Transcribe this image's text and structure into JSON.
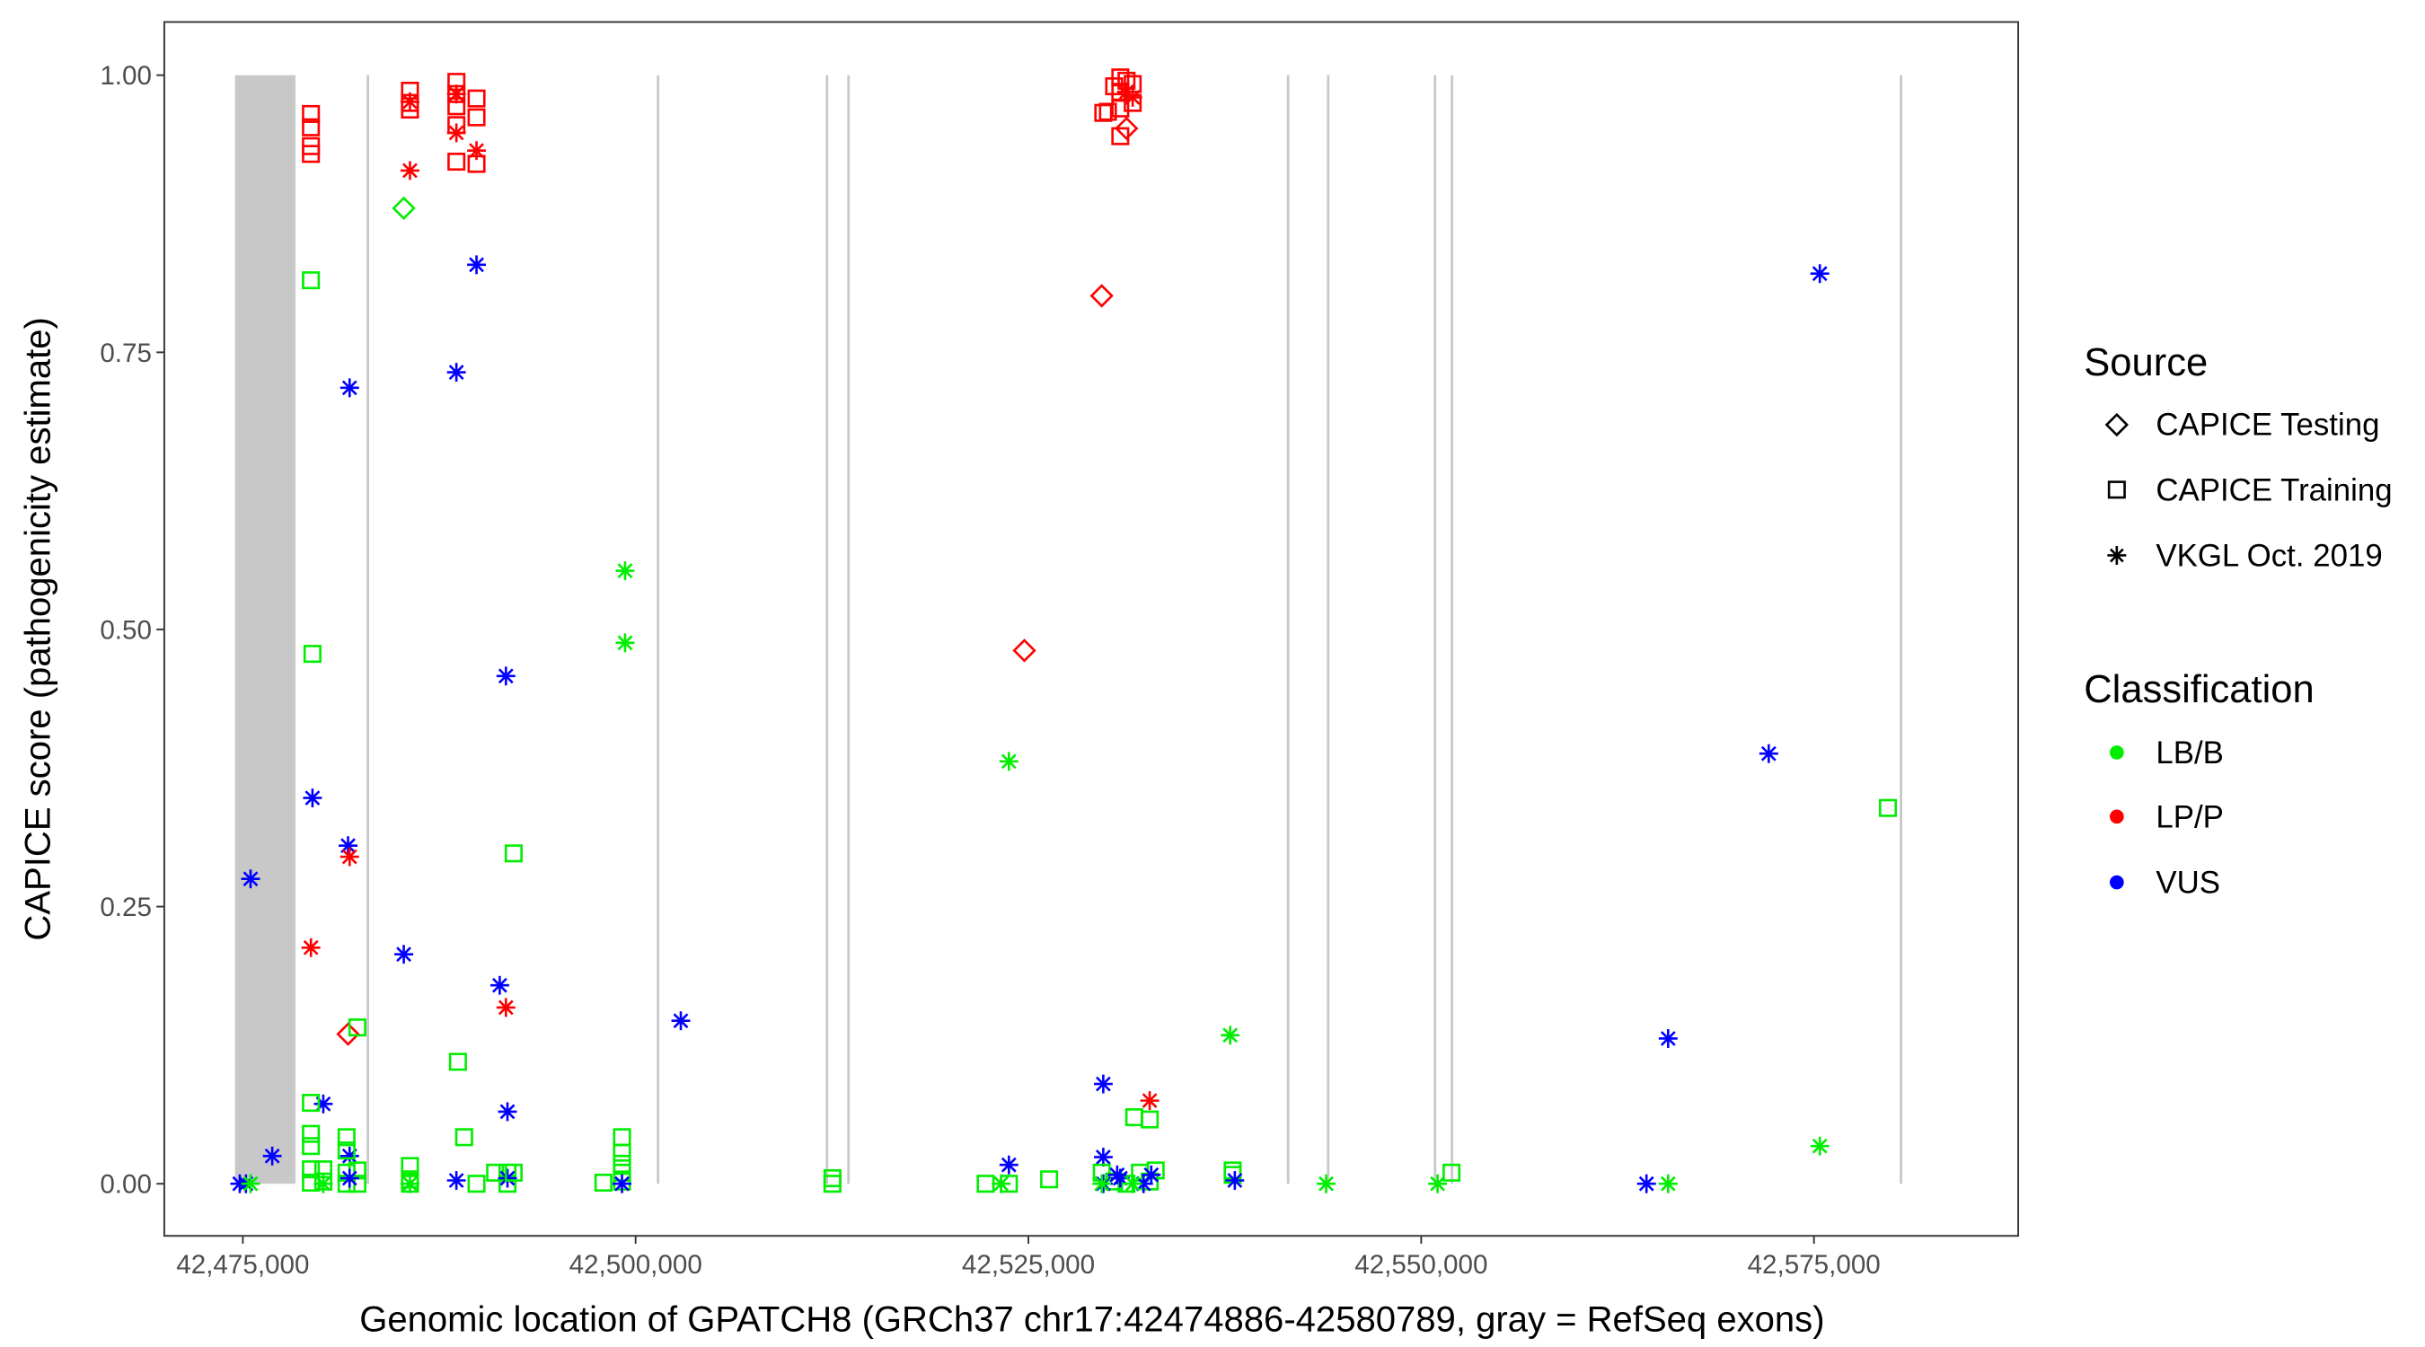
{
  "chart_data": {
    "type": "scatter",
    "xlabel": "Genomic location of GPATCH8 (GRCh37 chr17:42474886-42580789, gray = RefSeq exons)",
    "ylabel": "CAPICE score (pathogenicity estimate)",
    "xlim": [
      42470000,
      42588000
    ],
    "ylim": [
      -0.047,
      1.048
    ],
    "x_ticks": [
      42475000,
      42500000,
      42525000,
      42550000,
      42575000
    ],
    "x_tick_labels": [
      "42,475,000",
      "42,500,000",
      "42,525,000",
      "42,550,000",
      "42,575,000"
    ],
    "y_ticks": [
      0,
      0.25,
      0.5,
      0.75,
      1.0
    ],
    "y_tick_labels": [
      "0.00",
      "0.25",
      "0.50",
      "0.75",
      "1.00"
    ],
    "grid": false,
    "exons": [
      [
        42474500,
        42478350
      ],
      [
        42482880,
        42483000
      ],
      [
        42501350,
        42501470
      ],
      [
        42512100,
        42512220
      ],
      [
        42513470,
        42513590
      ],
      [
        42541450,
        42541570
      ],
      [
        42544000,
        42544120
      ],
      [
        42550800,
        42550920
      ],
      [
        42551880,
        42552000
      ],
      [
        42580460,
        42580580
      ]
    ],
    "exon_color": "#c8c8c8",
    "legend": {
      "position": "right",
      "source_title": "Source",
      "sources": [
        "CAPICE Testing",
        "CAPICE Training",
        "VKGL Oct. 2019"
      ],
      "source_shapes": [
        "diamond",
        "square",
        "asterisk"
      ],
      "class_title": "Classification",
      "classes": [
        "LB/B",
        "LP/P",
        "VUS"
      ],
      "class_colors": [
        "#00ee00",
        "#ff0000",
        "#0000ff"
      ]
    },
    "point_fields": [
      "position",
      "score",
      "source_index",
      "class_index"
    ],
    "points": [
      [
        42479334,
        0.965,
        1,
        1
      ],
      [
        42479334,
        0.953,
        1,
        1
      ],
      [
        42479334,
        0.936,
        1,
        1
      ],
      [
        42479334,
        0.929,
        1,
        1
      ],
      [
        42485638,
        0.986,
        1,
        1
      ],
      [
        42485638,
        0.975,
        1,
        1
      ],
      [
        42485638,
        0.969,
        1,
        1
      ],
      [
        42485638,
        0.976,
        2,
        1
      ],
      [
        42485638,
        0.914,
        2,
        1
      ],
      [
        42485244,
        0.88,
        0,
        0
      ],
      [
        42488593,
        0.994,
        1,
        1
      ],
      [
        42488593,
        0.983,
        1,
        1
      ],
      [
        42488593,
        0.972,
        1,
        1
      ],
      [
        42488593,
        0.955,
        1,
        1
      ],
      [
        42488593,
        0.922,
        1,
        1
      ],
      [
        42489874,
        0.979,
        1,
        1
      ],
      [
        42489874,
        0.962,
        1,
        1
      ],
      [
        42489874,
        0.92,
        1,
        1
      ],
      [
        42488593,
        0.983,
        2,
        1
      ],
      [
        42488593,
        0.948,
        2,
        1
      ],
      [
        42489874,
        0.932,
        2,
        1
      ],
      [
        42489874,
        0.829,
        2,
        2
      ],
      [
        42488593,
        0.732,
        2,
        2
      ],
      [
        42481797,
        0.718,
        2,
        2
      ],
      [
        42479334,
        0.815,
        1,
        0
      ],
      [
        42479433,
        0.478,
        1,
        0
      ],
      [
        42499330,
        0.553,
        2,
        0
      ],
      [
        42499330,
        0.488,
        2,
        0
      ],
      [
        42491745,
        0.458,
        2,
        2
      ],
      [
        42479433,
        0.348,
        2,
        2
      ],
      [
        42481698,
        0.305,
        2,
        2
      ],
      [
        42481797,
        0.295,
        2,
        1
      ],
      [
        42492238,
        0.298,
        1,
        0
      ],
      [
        42479334,
        0.213,
        2,
        1
      ],
      [
        42485244,
        0.207,
        2,
        2
      ],
      [
        42475493,
        0.275,
        2,
        2
      ],
      [
        42491351,
        0.179,
        2,
        2
      ],
      [
        42491745,
        0.159,
        2,
        1
      ],
      [
        42502876,
        0.147,
        2,
        2
      ],
      [
        42481698,
        0.135,
        0,
        1
      ],
      [
        42482289,
        0.141,
        1,
        0
      ],
      [
        42488692,
        0.11,
        1,
        0
      ],
      [
        42480122,
        0.072,
        2,
        2
      ],
      [
        42479334,
        0.073,
        1,
        0
      ],
      [
        42491844,
        0.065,
        2,
        2
      ],
      [
        42489086,
        0.042,
        1,
        0
      ],
      [
        42481600,
        0.042,
        1,
        0
      ],
      [
        42499133,
        0.042,
        1,
        0
      ],
      [
        42476872,
        0.025,
        2,
        2
      ],
      [
        42481797,
        0.025,
        2,
        2
      ],
      [
        42479334,
        0.045,
        1,
        0
      ],
      [
        42479334,
        0.034,
        1,
        0
      ],
      [
        42479334,
        0.013,
        1,
        0
      ],
      [
        42479334,
        0.001,
        1,
        0
      ],
      [
        42480122,
        0.013,
        1,
        0
      ],
      [
        42480122,
        0.002,
        1,
        0
      ],
      [
        42480122,
        0.0,
        2,
        0
      ],
      [
        42481600,
        0.03,
        1,
        0
      ],
      [
        42481600,
        0.01,
        1,
        0
      ],
      [
        42481600,
        0.0,
        1,
        0
      ],
      [
        42482289,
        0.012,
        1,
        0
      ],
      [
        42482289,
        0.0,
        1,
        0
      ],
      [
        42481797,
        0.005,
        2,
        2
      ],
      [
        42485638,
        0.016,
        1,
        0
      ],
      [
        42485638,
        0.004,
        1,
        0
      ],
      [
        42485638,
        0.0,
        1,
        0
      ],
      [
        42485638,
        0.0,
        2,
        0
      ],
      [
        42488593,
        0.003,
        2,
        2
      ],
      [
        42489874,
        0.0,
        1,
        0
      ],
      [
        42491055,
        0.01,
        1,
        0
      ],
      [
        42491844,
        0.01,
        1,
        0
      ],
      [
        42491844,
        0.0,
        1,
        0
      ],
      [
        42491844,
        0.005,
        2,
        2
      ],
      [
        42492238,
        0.01,
        1,
        0
      ],
      [
        42497951,
        0.001,
        1,
        0
      ],
      [
        42499133,
        0.028,
        1,
        0
      ],
      [
        42499133,
        0.018,
        1,
        0
      ],
      [
        42499133,
        0.01,
        1,
        0
      ],
      [
        42499133,
        0.002,
        1,
        0
      ],
      [
        42499133,
        0.0,
        2,
        2
      ],
      [
        42474803,
        0.0,
        2,
        2
      ],
      [
        42475197,
        0.0,
        2,
        2
      ],
      [
        42475493,
        0.0,
        2,
        0
      ],
      [
        42512529,
        0.005,
        1,
        0
      ],
      [
        42512529,
        0.0,
        1,
        0
      ],
      [
        42530456,
        0.99,
        1,
        1
      ],
      [
        42530850,
        0.998,
        1,
        1
      ],
      [
        42530850,
        0.985,
        1,
        1
      ],
      [
        42531244,
        0.995,
        1,
        1
      ],
      [
        42531638,
        0.992,
        1,
        1
      ],
      [
        42531638,
        0.975,
        1,
        1
      ],
      [
        42530850,
        0.97,
        1,
        1
      ],
      [
        42530062,
        0.967,
        1,
        1
      ],
      [
        42529766,
        0.966,
        1,
        1
      ],
      [
        42530850,
        0.945,
        1,
        1
      ],
      [
        42531244,
        0.952,
        0,
        1
      ],
      [
        42531244,
        0.985,
        2,
        1
      ],
      [
        42531638,
        0.98,
        2,
        1
      ],
      [
        42529668,
        0.801,
        0,
        1
      ],
      [
        42524743,
        0.481,
        0,
        1
      ],
      [
        42523758,
        0.381,
        2,
        0
      ],
      [
        42529766,
        0.09,
        2,
        2
      ],
      [
        42532721,
        0.075,
        2,
        1
      ],
      [
        42531736,
        0.06,
        1,
        0
      ],
      [
        42532721,
        0.058,
        1,
        0
      ],
      [
        42529766,
        0.024,
        2,
        2
      ],
      [
        42523758,
        0.017,
        2,
        2
      ],
      [
        42537843,
        0.134,
        2,
        0
      ],
      [
        42522280,
        0.0,
        1,
        0
      ],
      [
        42523758,
        0.0,
        1,
        0
      ],
      [
        42523266,
        0.0,
        2,
        0
      ],
      [
        42526319,
        0.004,
        1,
        0
      ],
      [
        42529668,
        0.01,
        1,
        0
      ],
      [
        42530456,
        0.002,
        1,
        0
      ],
      [
        42531244,
        0.0,
        1,
        0
      ],
      [
        42532100,
        0.01,
        1,
        0
      ],
      [
        42532721,
        0.002,
        1,
        0
      ],
      [
        42533100,
        0.012,
        1,
        0
      ],
      [
        42529766,
        0.0,
        2,
        2
      ],
      [
        42530650,
        0.008,
        2,
        2
      ],
      [
        42530850,
        0.005,
        2,
        2
      ],
      [
        42532330,
        0.0,
        2,
        2
      ],
      [
        42532820,
        0.008,
        2,
        2
      ],
      [
        42529668,
        0.0,
        2,
        0
      ],
      [
        42531638,
        0.0,
        2,
        0
      ],
      [
        42538000,
        0.012,
        1,
        0
      ],
      [
        42538000,
        0.008,
        1,
        0
      ],
      [
        42538139,
        0.003,
        2,
        2
      ],
      [
        42543950,
        0.0,
        2,
        0
      ],
      [
        42551042,
        0.0,
        2,
        0
      ],
      [
        42551929,
        0.01,
        1,
        0
      ],
      [
        42564340,
        0.0,
        2,
        2
      ],
      [
        42565719,
        0.0,
        2,
        0
      ],
      [
        42575372,
        0.821,
        2,
        2
      ],
      [
        42572121,
        0.388,
        2,
        2
      ],
      [
        42579706,
        0.339,
        1,
        0
      ],
      [
        42565719,
        0.131,
        2,
        2
      ],
      [
        42575372,
        0.034,
        2,
        0
      ]
    ]
  }
}
